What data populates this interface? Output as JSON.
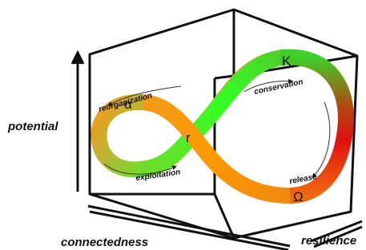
{
  "axes": {
    "vertical": "potential",
    "left": "connectedness",
    "right": "resilience"
  },
  "phases": {
    "reorganization": "reorganization",
    "conservation": "conservation",
    "exploitation": "exploitation",
    "release": "release"
  },
  "symbols": {
    "alpha": "α",
    "K": "K",
    "r": "r",
    "omega": "Ω"
  }
}
